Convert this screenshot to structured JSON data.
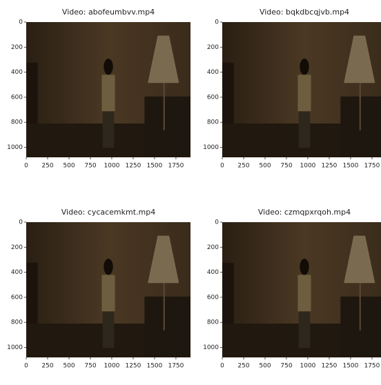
{
  "chart_data": [
    {
      "type": "image",
      "title": "Video: abofeumbvv.mp4",
      "xlim": [
        0,
        1920
      ],
      "ylim": [
        1080,
        0
      ],
      "xticks": [
        0,
        250,
        500,
        750,
        1000,
        1250,
        1500,
        1750
      ],
      "yticks": [
        0,
        200,
        400,
        600,
        800,
        1000
      ]
    },
    {
      "type": "image",
      "title": "Video: bqkdbcqjvb.mp4",
      "xlim": [
        0,
        1920
      ],
      "ylim": [
        1080,
        0
      ],
      "xticks": [
        0,
        250,
        500,
        750,
        1000,
        1250,
        1500,
        1750
      ],
      "yticks": [
        0,
        200,
        400,
        600,
        800,
        1000
      ]
    },
    {
      "type": "image",
      "title": "Video: cycacemkmt.mp4",
      "xlim": [
        0,
        1920
      ],
      "ylim": [
        1080,
        0
      ],
      "xticks": [
        0,
        250,
        500,
        750,
        1000,
        1250,
        1500,
        1750
      ],
      "yticks": [
        0,
        200,
        400,
        600,
        800,
        1000
      ]
    },
    {
      "type": "image",
      "title": "Video: czmqpxrqoh.mp4",
      "xlim": [
        0,
        1920
      ],
      "ylim": [
        1080,
        0
      ],
      "xticks": [
        0,
        250,
        500,
        750,
        1000,
        1250,
        1500,
        1750
      ],
      "yticks": [
        0,
        200,
        400,
        600,
        800,
        1000
      ]
    }
  ]
}
